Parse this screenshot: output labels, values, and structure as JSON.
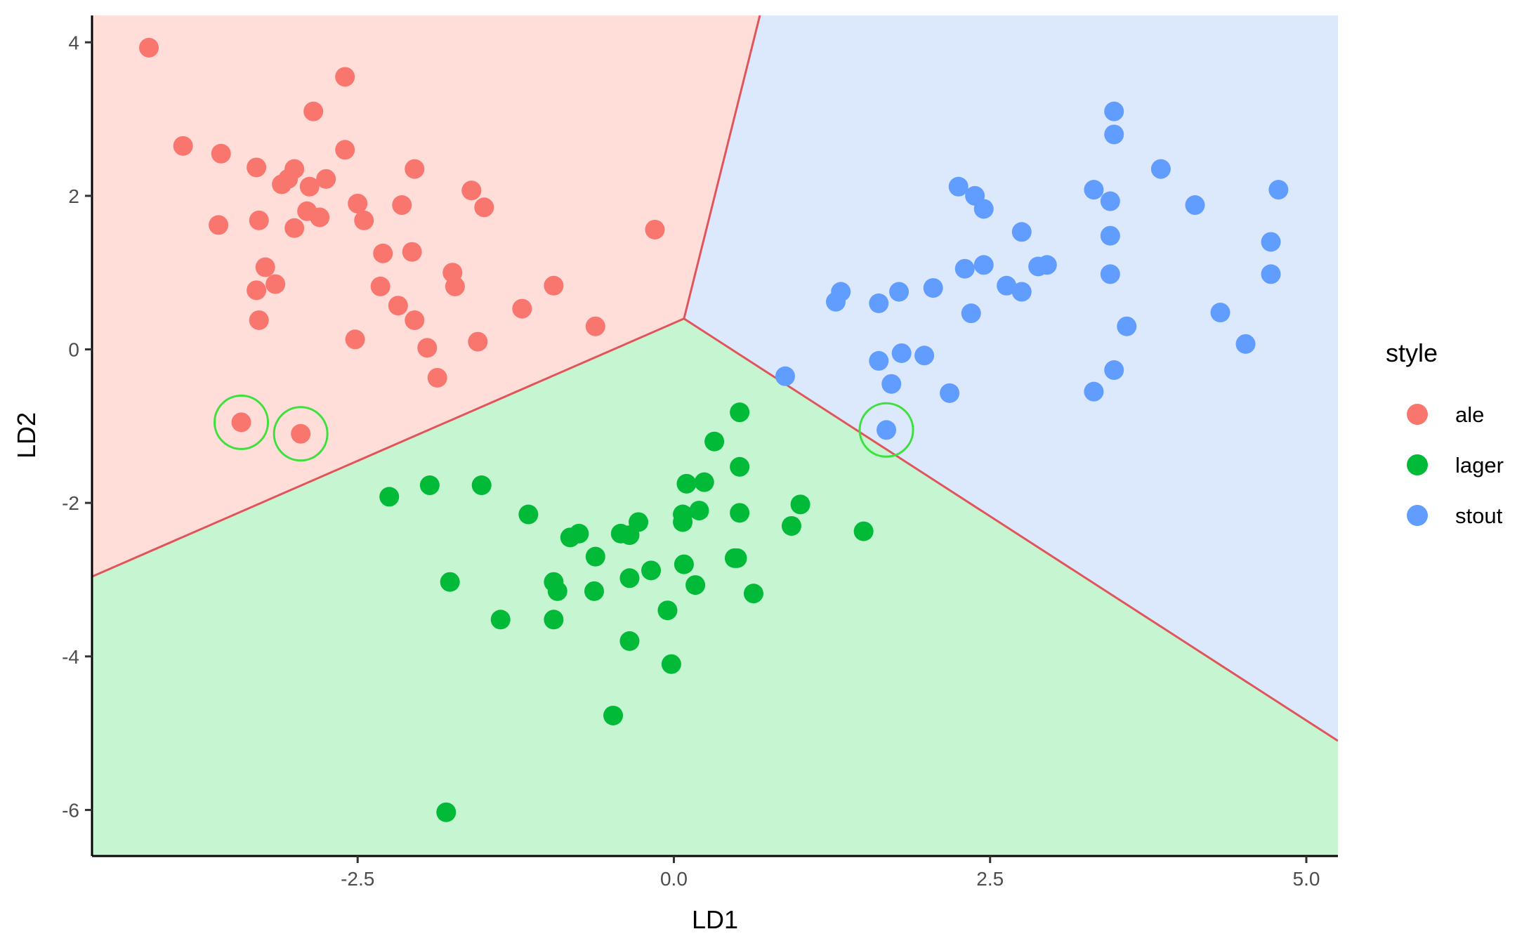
{
  "chart_data": {
    "type": "scatter",
    "title": "",
    "xlabel": "LD1",
    "ylabel": "LD2",
    "xlim": [
      -4.6,
      5.25
    ],
    "ylim": [
      -6.6,
      4.35
    ],
    "x_ticks": [
      -2.5,
      0.0,
      2.5,
      5.0
    ],
    "x_tick_labels": [
      "-2.5",
      "0.0",
      "2.5",
      "5.0"
    ],
    "y_ticks": [
      -6,
      -4,
      -2,
      0,
      2,
      4
    ],
    "y_tick_labels": [
      "-6",
      "-4",
      "-2",
      "0",
      "2",
      "4"
    ],
    "grid": false,
    "legend": {
      "title": "style",
      "placement": "right",
      "entries": [
        {
          "label": "ale",
          "color": "#F8766D"
        },
        {
          "label": "lager",
          "color": "#00BA38"
        },
        {
          "label": "stout",
          "color": "#619CFF"
        }
      ]
    },
    "regions": [
      {
        "class": "ale",
        "color": "#FFDDD9",
        "vertices": [
          [
            -4.6,
            4.35
          ],
          [
            0.68,
            4.35
          ],
          [
            0.08,
            0.4
          ],
          [
            -4.6,
            -2.96
          ]
        ]
      },
      {
        "class": "stout",
        "color": "#DCE9FD",
        "vertices": [
          [
            0.68,
            4.35
          ],
          [
            5.25,
            4.35
          ],
          [
            5.25,
            -5.1
          ],
          [
            0.08,
            0.4
          ]
        ]
      },
      {
        "class": "lager",
        "color": "#C5F5D1",
        "vertices": [
          [
            -4.6,
            -2.96
          ],
          [
            0.08,
            0.4
          ],
          [
            5.25,
            -5.1
          ],
          [
            5.25,
            -6.6
          ],
          [
            -4.6,
            -6.6
          ]
        ]
      }
    ],
    "boundaries": [
      [
        [
          0.08,
          0.4
        ],
        [
          0.68,
          4.35
        ]
      ],
      [
        [
          0.08,
          0.4
        ],
        [
          -4.6,
          -2.96
        ]
      ],
      [
        [
          0.08,
          0.4
        ],
        [
          5.25,
          -5.1
        ]
      ]
    ],
    "boundary_color": "#E0555A",
    "series": [
      {
        "name": "ale",
        "color": "#F8766D",
        "points": [
          [
            -4.15,
            3.93
          ],
          [
            -2.6,
            3.55
          ],
          [
            -2.85,
            3.1
          ],
          [
            -3.88,
            2.65
          ],
          [
            -3.58,
            2.55
          ],
          [
            -3.3,
            2.37
          ],
          [
            -2.6,
            2.6
          ],
          [
            -2.05,
            2.35
          ],
          [
            -3.0,
            2.35
          ],
          [
            -3.05,
            2.22
          ],
          [
            -2.75,
            2.22
          ],
          [
            -3.1,
            2.15
          ],
          [
            -2.88,
            2.12
          ],
          [
            -1.6,
            2.07
          ],
          [
            -1.5,
            1.85
          ],
          [
            -2.5,
            1.9
          ],
          [
            -2.15,
            1.88
          ],
          [
            -2.9,
            1.8
          ],
          [
            -2.8,
            1.72
          ],
          [
            -2.45,
            1.68
          ],
          [
            -3.28,
            1.68
          ],
          [
            -3.6,
            1.62
          ],
          [
            -3.0,
            1.58
          ],
          [
            -0.15,
            1.56
          ],
          [
            -2.3,
            1.25
          ],
          [
            -2.07,
            1.27
          ],
          [
            -3.23,
            1.07
          ],
          [
            -1.75,
            1.0
          ],
          [
            -3.15,
            0.85
          ],
          [
            -3.3,
            0.77
          ],
          [
            -2.32,
            0.82
          ],
          [
            -1.73,
            0.82
          ],
          [
            -0.95,
            0.83
          ],
          [
            -2.18,
            0.57
          ],
          [
            -1.2,
            0.53
          ],
          [
            -2.05,
            0.38
          ],
          [
            -3.28,
            0.38
          ],
          [
            -0.62,
            0.3
          ],
          [
            -2.52,
            0.13
          ],
          [
            -1.55,
            0.1
          ],
          [
            -1.95,
            0.02
          ],
          [
            -1.87,
            -0.37
          ],
          [
            -3.42,
            -0.95
          ],
          [
            -2.95,
            -1.1
          ]
        ]
      },
      {
        "name": "lager",
        "color": "#00BA38",
        "points": [
          [
            0.52,
            -0.82
          ],
          [
            0.32,
            -1.2
          ],
          [
            0.52,
            -1.53
          ],
          [
            0.1,
            -1.75
          ],
          [
            0.24,
            -1.73
          ],
          [
            -1.93,
            -1.77
          ],
          [
            -1.52,
            -1.77
          ],
          [
            -2.25,
            -1.92
          ],
          [
            1.0,
            -2.02
          ],
          [
            0.52,
            -2.13
          ],
          [
            0.2,
            -2.1
          ],
          [
            0.07,
            -2.15
          ],
          [
            -1.15,
            -2.15
          ],
          [
            0.07,
            -2.25
          ],
          [
            -0.28,
            -2.25
          ],
          [
            0.93,
            -2.3
          ],
          [
            1.5,
            -2.37
          ],
          [
            -0.75,
            -2.4
          ],
          [
            -0.82,
            -2.45
          ],
          [
            -0.42,
            -2.4
          ],
          [
            -0.35,
            -2.42
          ],
          [
            -0.62,
            -2.7
          ],
          [
            0.48,
            -2.72
          ],
          [
            0.5,
            -2.72
          ],
          [
            0.08,
            -2.8
          ],
          [
            -0.18,
            -2.88
          ],
          [
            -0.35,
            -2.98
          ],
          [
            -0.95,
            -3.03
          ],
          [
            -1.77,
            -3.03
          ],
          [
            -0.92,
            -3.15
          ],
          [
            0.17,
            -3.07
          ],
          [
            -0.63,
            -3.15
          ],
          [
            0.63,
            -3.18
          ],
          [
            -0.05,
            -3.4
          ],
          [
            -1.37,
            -3.52
          ],
          [
            -0.95,
            -3.52
          ],
          [
            -0.35,
            -3.8
          ],
          [
            -0.02,
            -4.1
          ],
          [
            -0.48,
            -4.77
          ],
          [
            -1.8,
            -6.03
          ]
        ]
      },
      {
        "name": "stout",
        "color": "#619CFF",
        "points": [
          [
            3.48,
            3.1
          ],
          [
            3.48,
            2.8
          ],
          [
            3.85,
            2.35
          ],
          [
            2.25,
            2.12
          ],
          [
            3.32,
            2.08
          ],
          [
            4.78,
            2.08
          ],
          [
            2.38,
            2.0
          ],
          [
            3.45,
            1.93
          ],
          [
            4.12,
            1.88
          ],
          [
            2.45,
            1.83
          ],
          [
            2.75,
            1.53
          ],
          [
            3.45,
            1.48
          ],
          [
            4.72,
            1.4
          ],
          [
            2.45,
            1.1
          ],
          [
            2.95,
            1.1
          ],
          [
            2.88,
            1.08
          ],
          [
            2.3,
            1.05
          ],
          [
            3.45,
            0.98
          ],
          [
            4.72,
            0.98
          ],
          [
            2.63,
            0.83
          ],
          [
            2.05,
            0.8
          ],
          [
            1.78,
            0.75
          ],
          [
            2.75,
            0.75
          ],
          [
            1.32,
            0.75
          ],
          [
            1.28,
            0.62
          ],
          [
            1.62,
            0.6
          ],
          [
            4.32,
            0.48
          ],
          [
            2.35,
            0.47
          ],
          [
            3.58,
            0.3
          ],
          [
            4.52,
            0.07
          ],
          [
            1.8,
            -0.05
          ],
          [
            1.98,
            -0.08
          ],
          [
            1.62,
            -0.15
          ],
          [
            0.88,
            -0.35
          ],
          [
            3.48,
            -0.27
          ],
          [
            1.72,
            -0.45
          ],
          [
            2.18,
            -0.57
          ],
          [
            3.32,
            -0.55
          ],
          [
            1.68,
            -1.05
          ]
        ]
      }
    ],
    "highlighted_points": [
      [
        -3.42,
        -0.95
      ],
      [
        -2.95,
        -1.1
      ],
      [
        1.68,
        -1.05
      ]
    ],
    "highlight_color": "#3EE03E"
  }
}
